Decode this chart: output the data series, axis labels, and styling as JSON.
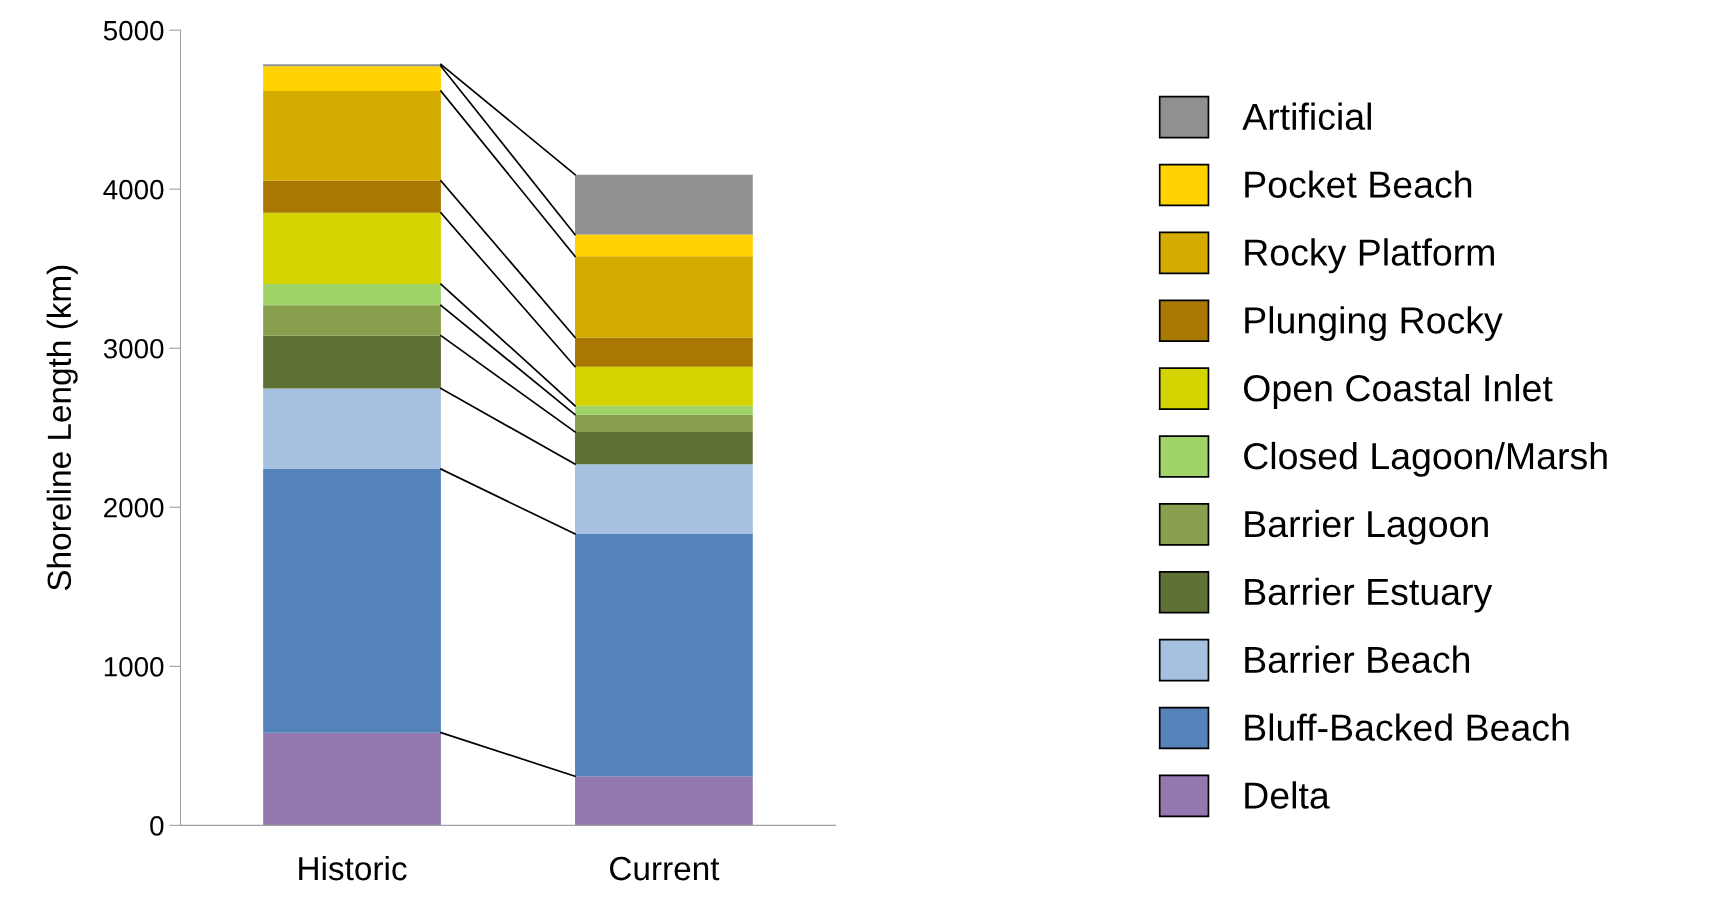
{
  "chart_data": {
    "type": "bar",
    "stacked": true,
    "ylabel": "Shoreline Length (km)",
    "categories": [
      "Historic",
      "Current"
    ],
    "ylim": [
      0,
      5000
    ],
    "yticks": [
      0,
      1000,
      2000,
      3000,
      4000,
      5000
    ],
    "grid": false,
    "legend": "right",
    "series": [
      {
        "name": "Delta",
        "color": "#9479b0",
        "values": [
          583,
          309
        ]
      },
      {
        "name": "Bluff-Backed Beach",
        "color": "#5383b8",
        "values": [
          1657,
          1523
        ]
      },
      {
        "name": "Barrier Beach",
        "color": "#a6c0e0",
        "values": [
          507,
          439
        ]
      },
      {
        "name": "Barrier Estuary",
        "color": "#5e7235",
        "values": [
          332,
          203
        ]
      },
      {
        "name": "Barrier Lagoon",
        "color": "#88a04e",
        "values": [
          191,
          109
        ]
      },
      {
        "name": "Closed Lagoon/Marsh",
        "color": "#a0d468",
        "values": [
          133,
          55
        ]
      },
      {
        "name": "Open Coastal Inlet",
        "color": "#d4d400",
        "values": [
          448,
          246
        ]
      },
      {
        "name": "Plunging Rocky",
        "color": "#a87800",
        "values": [
          202,
          184
        ]
      },
      {
        "name": "Rocky Platform",
        "color": "#d4ac00",
        "values": [
          564,
          510
        ]
      },
      {
        "name": "Pocket Beach",
        "color": "#ffd200",
        "values": [
          156,
          137
        ]
      },
      {
        "name": "Artificial",
        "color": "#909090",
        "values": [
          12,
          376
        ]
      }
    ]
  }
}
